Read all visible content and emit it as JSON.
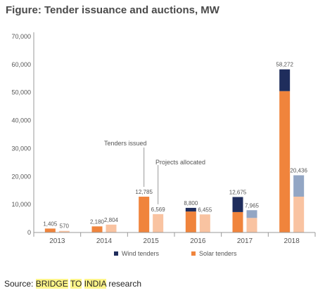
{
  "figure_title": "Figure: Tender issuance and auctions, MW",
  "source": {
    "prefix": "Source: ",
    "brand_words": [
      "BRIDGE",
      "TO",
      "INDIA"
    ],
    "suffix": " research"
  },
  "colors": {
    "wind_tender": "#1f2d5c",
    "solar_tender": "#f0843c",
    "wind_alloc": "#93a6c4",
    "solar_alloc": "#f9c3a1",
    "axis": "#999999",
    "text": "#555555"
  },
  "chart_data": {
    "type": "bar",
    "stacked": true,
    "categories": [
      "2013",
      "2014",
      "2015",
      "2016",
      "2017",
      "2018"
    ],
    "ylim": [
      0,
      70000
    ],
    "yticks": [
      0,
      10000,
      20000,
      30000,
      40000,
      50000,
      60000,
      70000
    ],
    "ytick_labels": [
      "0",
      "10,000",
      "20,000",
      "30,000",
      "40,000",
      "50,000",
      "60,000",
      "70,000"
    ],
    "groups": [
      {
        "name": "Tenders issued",
        "solar": [
          1405,
          2180,
          12785,
          7500,
          7300,
          50500
        ],
        "wind": [
          0,
          0,
          0,
          1300,
          5375,
          7772
        ],
        "total_labels": [
          "1,405",
          "2,180",
          "12,785",
          "8,800",
          "12,675",
          "58,272"
        ]
      },
      {
        "name": "Projects allocated",
        "solar": [
          570,
          2804,
          6569,
          6455,
          5200,
          12800
        ],
        "wind": [
          0,
          0,
          0,
          0,
          2765,
          7636
        ],
        "total_labels": [
          "570",
          "2,804",
          "6,569",
          "6,455",
          "7,965",
          "20,436"
        ]
      }
    ],
    "annotations": [
      "Tenders issued",
      "Projects allocated"
    ],
    "legend": [
      {
        "label": "Wind tenders",
        "color_key": "wind_tender"
      },
      {
        "label": "Solar tenders",
        "color_key": "solar_tender"
      }
    ],
    "legend_position": "bottom",
    "grid": false
  }
}
